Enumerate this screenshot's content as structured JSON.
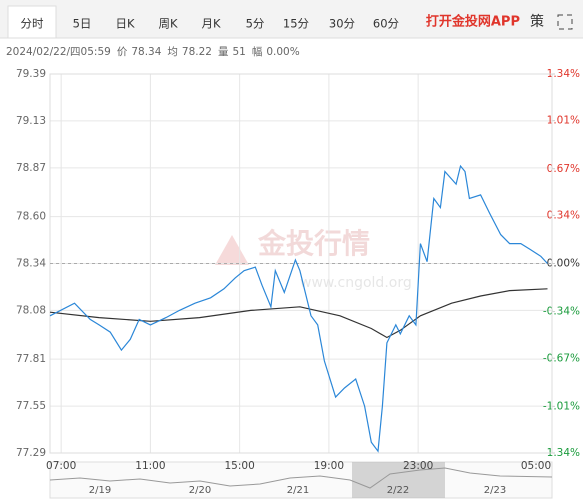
{
  "tabs": [
    "分时",
    "5日",
    "日K",
    "周K",
    "月K",
    "5分",
    "15分",
    "30分",
    "60分"
  ],
  "app_link": "打开金投网APP",
  "strategy_icon": "策",
  "info": {
    "datetime": "2024/02/22/四05:59",
    "fields": [
      {
        "label": "价",
        "value": "78.34"
      },
      {
        "label": "均",
        "value": "78.22"
      },
      {
        "label": "量",
        "value": "51"
      },
      {
        "label": "幅",
        "value": "0.00%"
      }
    ]
  },
  "watermark": {
    "title": "金投行情",
    "site": "www.cngold.org"
  },
  "navigator": {
    "labels": [
      "2/19",
      "2/20",
      "2/21",
      "2/22",
      "2/23"
    ]
  },
  "chart_data": {
    "type": "line",
    "x": [
      6.5,
      7.6,
      8.3,
      8.7,
      9.2,
      9.7,
      10.1,
      10.5,
      11.0,
      11.7,
      12.3,
      13.0,
      13.7,
      14.3,
      14.8,
      15.2,
      15.7,
      16.0,
      16.4,
      16.6,
      17.0,
      17.5,
      17.7,
      18.2,
      18.5,
      18.8,
      19.3,
      19.7,
      20.2,
      20.6,
      20.9,
      21.2,
      21.4,
      21.6,
      22.0,
      22.2,
      22.6,
      22.9,
      23.1,
      23.4,
      23.7,
      24.0,
      24.2,
      24.7,
      24.9,
      25.1,
      25.3,
      25.8,
      26.2,
      26.7,
      27.1,
      27.6,
      28.0,
      28.5,
      28.8
    ],
    "series": [
      {
        "color": "#2b87d8",
        "values": [
          78.05,
          78.12,
          78.03,
          78.0,
          77.96,
          77.86,
          77.92,
          78.03,
          78.0,
          78.04,
          78.08,
          78.12,
          78.15,
          78.2,
          78.26,
          78.3,
          78.32,
          78.22,
          78.1,
          78.3,
          78.18,
          78.36,
          78.3,
          78.05,
          78.0,
          77.8,
          77.6,
          77.65,
          77.7,
          77.55,
          77.35,
          77.3,
          77.55,
          77.9,
          78.0,
          77.95,
          78.05,
          78.0,
          78.45,
          78.35,
          78.7,
          78.65,
          78.85,
          78.78,
          78.88,
          78.85,
          78.7,
          78.72,
          78.62,
          78.5,
          78.45,
          78.45,
          78.42,
          78.38,
          78.34
        ]
      }
    ],
    "avg_x": [
      6.5,
      8.7,
      11.0,
      13.2,
      15.5,
      17.7,
      19.5,
      20.9,
      21.6,
      22.2,
      23.1,
      24.5,
      25.8,
      27.1,
      28.8
    ],
    "avg_values": [
      78.07,
      78.04,
      78.02,
      78.04,
      78.08,
      78.1,
      78.05,
      77.98,
      77.93,
      77.97,
      78.05,
      78.12,
      78.16,
      78.19,
      78.2
    ],
    "avg_color": "#333333",
    "reference": 78.34,
    "xlim": [
      6.5,
      29
    ],
    "xticks": [
      {
        "value": 7,
        "label": "07:00"
      },
      {
        "value": 11,
        "label": "11:00"
      },
      {
        "value": 15,
        "label": "15:00"
      },
      {
        "value": 19,
        "label": "19:00"
      },
      {
        "value": 23,
        "label": "23:00"
      },
      {
        "value": 29,
        "label": "05:00"
      }
    ],
    "ylim": [
      77.29,
      79.39
    ],
    "yticks": [
      {
        "value": 79.39,
        "label": "79.39"
      },
      {
        "value": 79.13,
        "label": "79.13"
      },
      {
        "value": 78.87,
        "label": "78.87"
      },
      {
        "value": 78.6,
        "label": "78.60"
      },
      {
        "value": 78.34,
        "label": "78.34"
      },
      {
        "value": 78.08,
        "label": "78.08"
      },
      {
        "value": 77.81,
        "label": "77.81"
      },
      {
        "value": 77.55,
        "label": "77.55"
      },
      {
        "value": 77.29,
        "label": "77.29"
      }
    ],
    "y2lim": [
      -1.34,
      1.34
    ],
    "y2ticks": [
      {
        "value": 1.34,
        "label": "1.34%"
      },
      {
        "value": 1.01,
        "label": "1.01%"
      },
      {
        "value": 0.67,
        "label": "0.67%"
      },
      {
        "value": 0.34,
        "label": "0.34%"
      },
      {
        "value": 0,
        "label": "0.00%"
      },
      {
        "value": -0.34,
        "label": "-0.34%"
      },
      {
        "value": -0.67,
        "label": "-0.67%"
      },
      {
        "value": -1.01,
        "label": "-1.01%"
      },
      {
        "value": -1.34,
        "label": "-1.34%"
      }
    ],
    "up_color": "#e0352b",
    "down_color": "#1a9b3c",
    "flat_color": "#333333",
    "grid": true
  }
}
